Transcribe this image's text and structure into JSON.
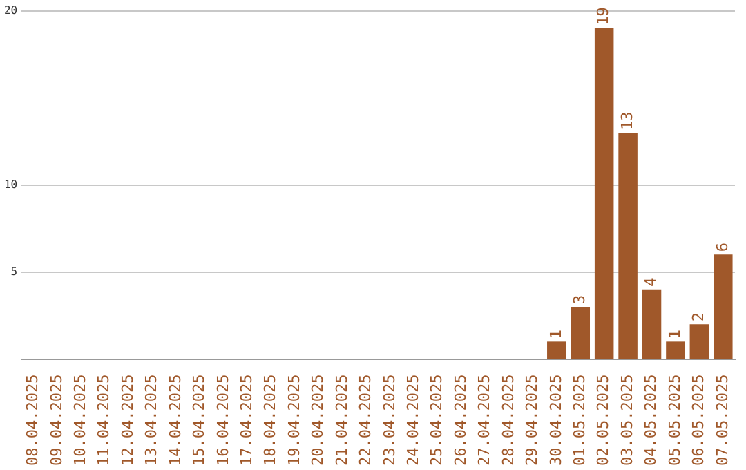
{
  "chart_data": {
    "type": "bar",
    "categories": [
      "08.04.2025",
      "09.04.2025",
      "10.04.2025",
      "11.04.2025",
      "12.04.2025",
      "13.04.2025",
      "14.04.2025",
      "15.04.2025",
      "16.04.2025",
      "17.04.2025",
      "18.04.2025",
      "19.04.2025",
      "20.04.2025",
      "21.04.2025",
      "22.04.2025",
      "23.04.2025",
      "24.04.2025",
      "25.04.2025",
      "26.04.2025",
      "27.04.2025",
      "28.04.2025",
      "29.04.2025",
      "30.04.2025",
      "01.05.2025",
      "02.05.2025",
      "03.05.2025",
      "04.05.2025",
      "05.05.2025",
      "06.05.2025",
      "07.05.2025"
    ],
    "values": [
      0,
      0,
      0,
      0,
      0,
      0,
      0,
      0,
      0,
      0,
      0,
      0,
      0,
      0,
      0,
      0,
      0,
      0,
      0,
      0,
      0,
      0,
      1,
      3,
      19,
      13,
      4,
      1,
      2,
      6
    ],
    "value_labels": [
      null,
      null,
      null,
      null,
      null,
      null,
      null,
      null,
      null,
      null,
      null,
      null,
      null,
      null,
      null,
      null,
      null,
      null,
      null,
      null,
      null,
      null,
      "1",
      "3",
      "19",
      "13",
      "4",
      "1",
      "2",
      "6"
    ],
    "color": "#a0582a",
    "ylim": [
      0,
      20
    ],
    "yticks": [
      5,
      10,
      20
    ],
    "grid": "y",
    "legend": false
  }
}
